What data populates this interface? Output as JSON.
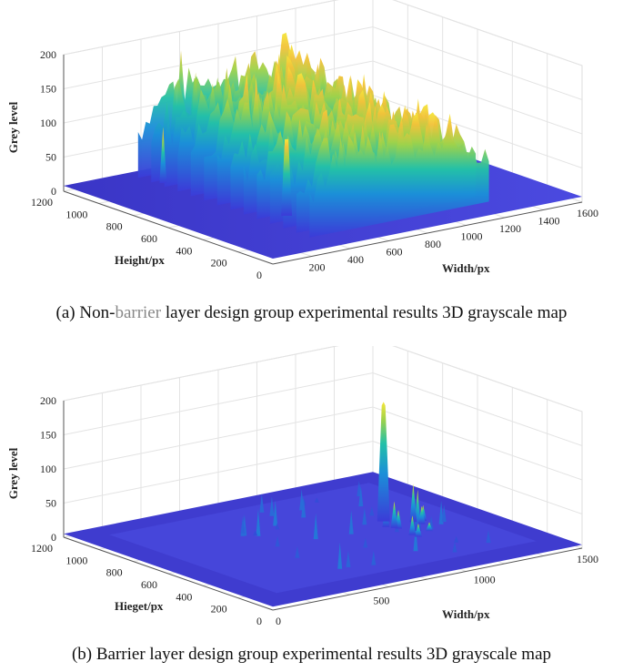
{
  "chart_data": [
    {
      "type": "surface3d",
      "caption_prefix": "(a) Non-",
      "caption_highlight": "barrier",
      "caption_suffix": " layer design group experimental results 3D grayscale map",
      "zlabel": "Grey level",
      "xlabel": "Width/px",
      "ylabel": "Height/px",
      "zlim": [
        0,
        200
      ],
      "xlim": [
        0,
        1600
      ],
      "ylim": [
        0,
        1200
      ],
      "z_ticks": [
        "0",
        "50",
        "100",
        "150",
        "200"
      ],
      "x_ticks": [
        "200",
        "400",
        "600",
        "800",
        "1000",
        "1200",
        "1400",
        "1600"
      ],
      "y_ticks": [
        "0",
        "200",
        "400",
        "600",
        "800",
        "1000",
        "1200"
      ],
      "features": {
        "baseline": 8,
        "plateau_peak": 200,
        "plateau_typical": 150,
        "spike_at_width": 450,
        "spike_value": 120
      }
    },
    {
      "type": "surface3d",
      "caption": "(b) Barrier layer design group experimental results 3D grayscale map",
      "zlabel": "Grey level",
      "xlabel": "Width/px",
      "ylabel": "Hieget/px",
      "zlim": [
        0,
        200
      ],
      "xlim": [
        0,
        1500
      ],
      "ylim": [
        0,
        1200
      ],
      "z_ticks": [
        "0",
        "50",
        "100",
        "150",
        "200"
      ],
      "x_ticks": [
        "0",
        "500",
        "1000",
        "1500"
      ],
      "y_ticks": [
        "0",
        "200",
        "400",
        "600",
        "800",
        "1000",
        "1200"
      ],
      "features": {
        "baseline": 5,
        "max_peak": 180,
        "secondary_peak": 70
      }
    }
  ]
}
